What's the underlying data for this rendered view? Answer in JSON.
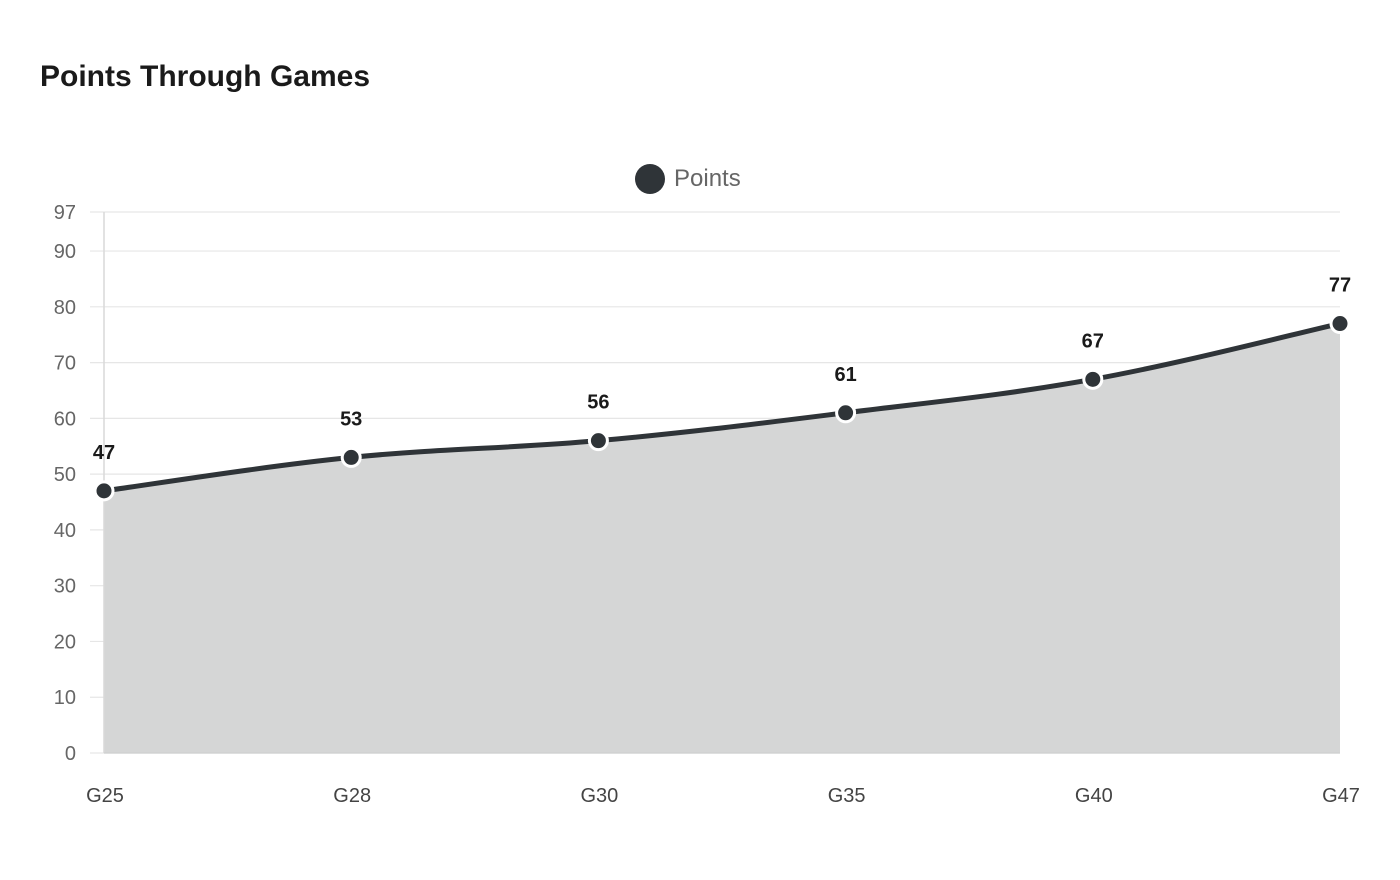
{
  "header": {
    "title": "Points Through Games"
  },
  "legend": {
    "items": [
      {
        "label": "Points",
        "color": "#2f3438",
        "icon": "filled-circle"
      }
    ]
  },
  "colors": {
    "line": "#2f3438",
    "area_fill": "#d5d6d6",
    "grid": "#e6e6e6",
    "axis": "#d9d9d9",
    "marker_stroke": "#ffffff"
  },
  "chart_data": {
    "type": "area",
    "title": "Points Through Games",
    "xlabel": "",
    "ylabel": "",
    "categories": [
      "G25",
      "G28",
      "G30",
      "G35",
      "G40",
      "G47"
    ],
    "series": [
      {
        "name": "Points",
        "values": [
          47,
          53,
          56,
          61,
          67,
          77
        ],
        "color": "#2f3438",
        "fill": "#d5d6d6",
        "smooth": true,
        "markers": true,
        "data_labels": true
      }
    ],
    "ylim": [
      0,
      97
    ],
    "y_ticks": [
      0,
      10,
      20,
      30,
      40,
      50,
      60,
      70,
      80,
      90,
      97
    ],
    "grid": true,
    "legend_position": "top-center"
  }
}
